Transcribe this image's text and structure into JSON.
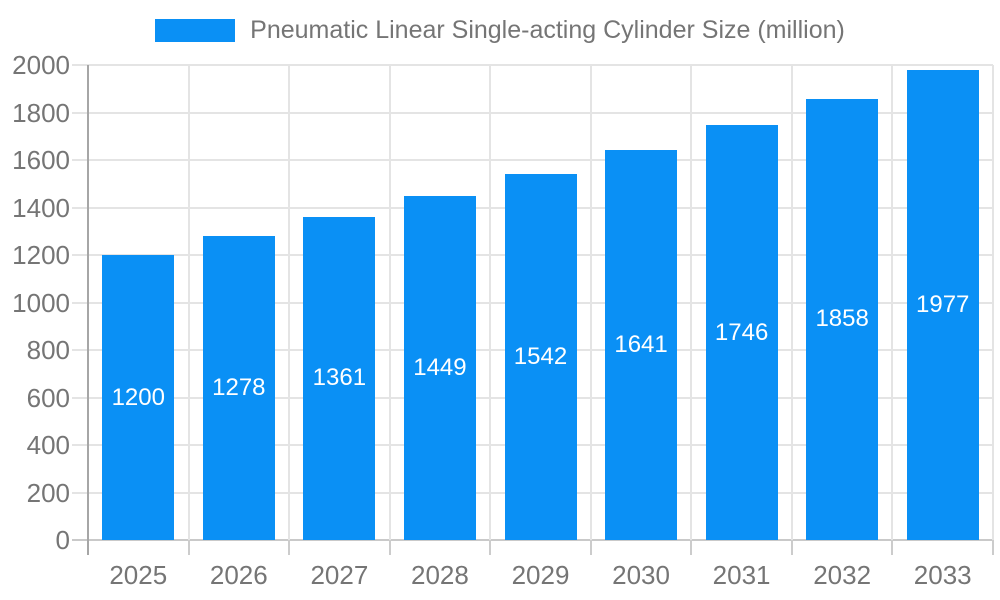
{
  "legend": {
    "label": "Pneumatic Linear Single-acting Cylinder Size (million)",
    "swatch_color": "#0a90f5"
  },
  "chart_data": {
    "type": "bar",
    "title": "Pneumatic Linear Single-acting Cylinder Size (million)",
    "categories": [
      "2025",
      "2026",
      "2027",
      "2028",
      "2029",
      "2030",
      "2031",
      "2032",
      "2033"
    ],
    "values": [
      1200,
      1278,
      1361,
      1449,
      1542,
      1641,
      1746,
      1858,
      1977
    ],
    "series_name": "Pneumatic Linear Single-acting Cylinder Size (million)",
    "xlabel": "",
    "ylabel": "",
    "ylim": [
      0,
      2000
    ],
    "ytick_step": 200,
    "yticks": [
      0,
      200,
      400,
      600,
      800,
      1000,
      1200,
      1400,
      1600,
      1800,
      2000
    ],
    "grid": true,
    "legend_position": "top",
    "bar_color": "#0a90f5",
    "bar_value_label_color": "#ffffff",
    "axis_text_color": "#757575"
  }
}
